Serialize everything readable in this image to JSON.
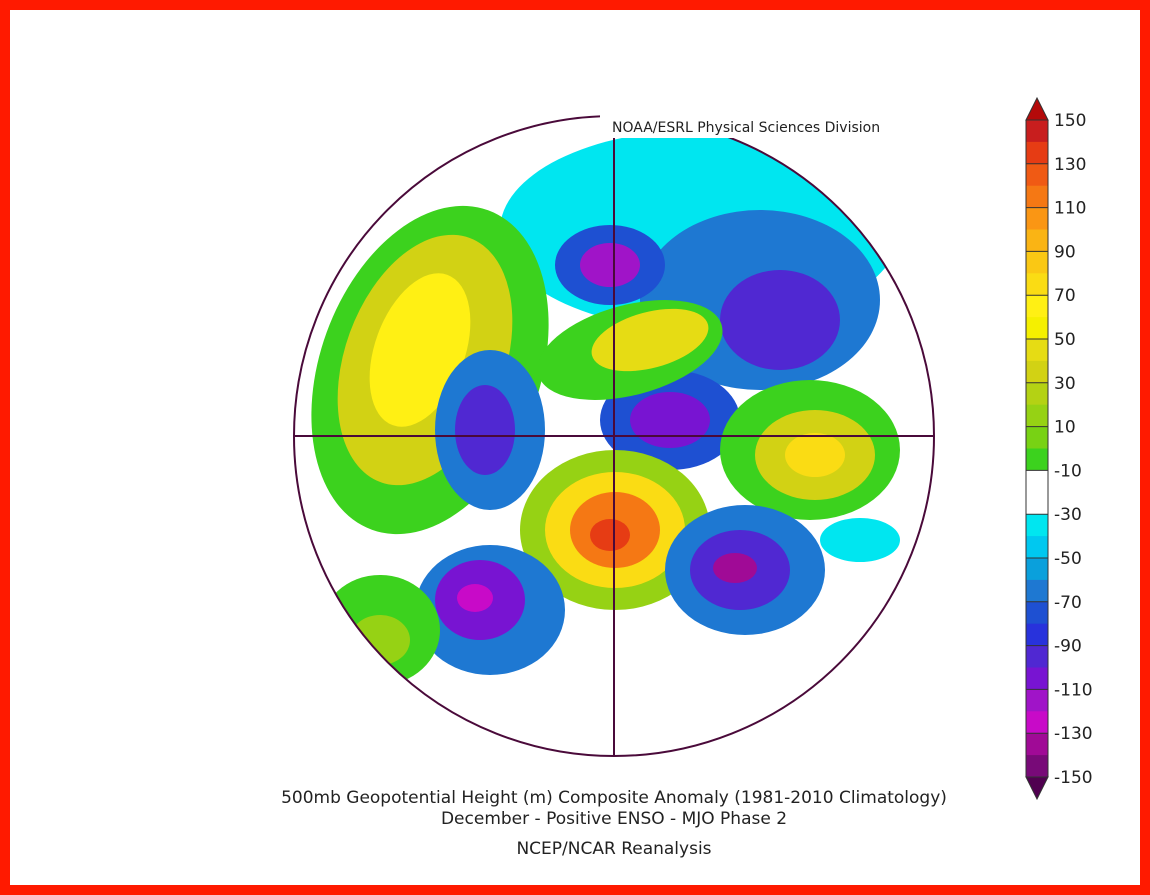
{
  "header": {
    "source": "NOAA/ESRL Physical Sciences Division"
  },
  "footer": {
    "title": "500mb Geopotential Height (m) Composite Anomaly (1981-2010 Climatology)",
    "subtitle": "December - Positive ENSO - MJO Phase 2",
    "dataset": "NCEP/NCAR Reanalysis"
  },
  "colorbar": {
    "lim": [
      -150,
      150
    ],
    "ticks": [
      150,
      130,
      110,
      90,
      70,
      50,
      30,
      10,
      -10,
      -30,
      -50,
      -70,
      -90,
      -110,
      -130,
      -150
    ],
    "colors": [
      "#c81e1e",
      "#e63c14",
      "#f05a14",
      "#f57814",
      "#fa9614",
      "#fab414",
      "#fac814",
      "#fadc14",
      "#fff014",
      "#f5f000",
      "#e6dc14",
      "#d2d214",
      "#b4d214",
      "#96d214",
      "#78d214",
      "#3cd21e",
      "#ffffff",
      "#ffffff",
      "#00e6f0",
      "#00c8f0",
      "#0aa0dc",
      "#1e78d2",
      "#1e50d2",
      "#2832dc",
      "#5028d2",
      "#7814d2",
      "#a014c8",
      "#c80ac8",
      "#a00a96",
      "#780a78"
    ],
    "over_color": "#b40a0a",
    "under_color": "#500050"
  }
}
